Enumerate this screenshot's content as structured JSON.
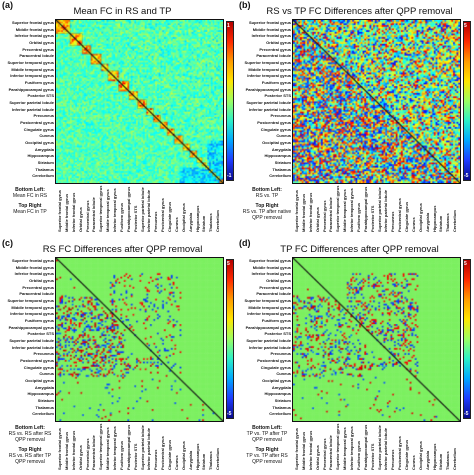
{
  "colors": {
    "ref_bg": "#7cf060",
    "diag": "#111111"
  },
  "region_labels_y": [
    "Superior frontal gyrus",
    "Middle frontal gyrus",
    "Inferior frontal gyrus",
    "Orbital gyrus",
    "Precentral gyrus",
    "Paracentral lobule",
    "Superior temporal gyrus",
    "Middle temporal gyrus",
    "Inferior temporal gyrus",
    "Fusiform gyrus",
    "Parahippocampal gyrus",
    "Posterior STS",
    "Superior parietal lobule",
    "Inferior parietal lobule",
    "Precuneus",
    "Postcentral gyrus",
    "Cingulate gyrus",
    "Cuneus",
    "Occipital gyrus",
    "Amygdala",
    "Hippocampus",
    "Striatum",
    "Thalamus",
    "Cerebellum"
  ],
  "region_labels_x": [
    "Superior frontal gyrus",
    "Middle frontal gyrus",
    "Inferior frontal gyrus",
    "Orbital gyrus",
    "Precentral gyrus",
    "Paracentral lobule",
    "Superior temporal gyrus",
    "Middle temporal gyrus",
    "Inferior temporal gyrus",
    "Fusiform gyrus",
    "Parahippocampal gyrus",
    "Posterior STS",
    "Superior parietal lobule",
    "Inferior parietal lobule",
    "Precuneus",
    "Postcentral gyrus",
    "Cingulate gyrus",
    "Cuneus",
    "Occipital gyrus",
    "Amygdala",
    "Hippocampus",
    "Striatum",
    "Thalamus",
    "Cerebellum"
  ],
  "panels": [
    {
      "id": "a",
      "label": "(a)",
      "title": "Mean FC in RS and TP",
      "cbar_top": "1",
      "cbar_bottom": "-1",
      "style": "mean",
      "bottom_left_head": "Bottom Left:",
      "bottom_left_text": "Mean FC in RS",
      "top_right_head": "Top Right",
      "top_right_text": "Mean FC in TP"
    },
    {
      "id": "b",
      "label": "(b)",
      "title": "RS vs TP FC Differences after QPP removal",
      "cbar_top": "5",
      "cbar_bottom": "-5",
      "style": "diff",
      "bottom_left_head": "Bottom Left:",
      "bottom_left_text": "RS vs. TP",
      "top_right_head": "Top Right",
      "top_right_text": "RS vs. TP after native QPP removal"
    },
    {
      "id": "c",
      "label": "(c)",
      "title": "RS FC Differences after QPP removal",
      "cbar_top": "5",
      "cbar_bottom": "-5",
      "style": "sparse",
      "bottom_left_head": "Bottom Left:",
      "bottom_left_text": "RS vs. RS after RS QPP removal",
      "top_right_head": "Top Right",
      "top_right_text": "RS vs. RS after TP QPP removal"
    },
    {
      "id": "d",
      "label": "(d)",
      "title": "TP FC Differences after QPP removal",
      "cbar_top": "5",
      "cbar_bottom": "-5",
      "style": "sparse2",
      "bottom_left_head": "Bottom Left:",
      "bottom_left_text": "TP vs. TP after TP QPP removal",
      "top_right_head": "Top Right",
      "top_right_text": "TP vs. TP after RS QPP removal"
    }
  ]
}
